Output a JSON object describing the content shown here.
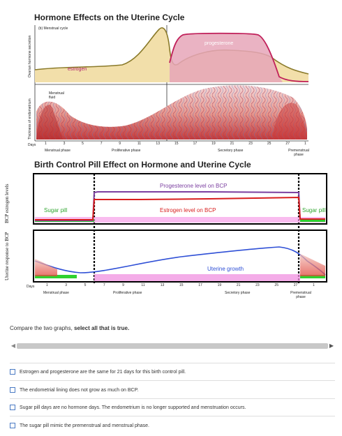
{
  "top_chart": {
    "title": "Hormone Effects on the Uterine Cycle",
    "panel_label": "(b) Menstrual cycle",
    "axis_ovarian": "Ovarian hormone secretion",
    "axis_endometrium": "Thickness of endometrium",
    "estrogen": "estrogen",
    "progesterone": "progesterone",
    "menstrual_fluid": "Menstrual fluid",
    "days": "Days",
    "day_ticks": [
      "1",
      "3",
      "5",
      "7",
      "9",
      "11",
      "13",
      "15",
      "17",
      "19",
      "21",
      "23",
      "25",
      "27",
      "1"
    ],
    "phases": [
      "Menstrual phase",
      "Proliferative phase",
      "Secretory phase",
      "Premenstrual phase"
    ],
    "colors": {
      "estrogen_fill": "#f2dfaa",
      "estrogen_line": "#8a7a2a",
      "progesterone_fill": "#e09ab0",
      "progesterone_line": "#c0205a"
    }
  },
  "bottom_chart": {
    "title": "Birth Control Pill Effect on Hormone and Uterine Cycle",
    "axis_levels": "BCP estrogen levels",
    "axis_response": "Uterine response to BCP",
    "sugar_pill": "Sugar pill",
    "sugar_pill_right": "Sugar pill",
    "progesterone_level": "Progesterone level on BCP",
    "estrogen_level": "Estrogen level on BCP",
    "uterine_growth": "Uterine growth",
    "days": "Days",
    "day_ticks": [
      "1",
      "3",
      "5",
      "7",
      "9",
      "11",
      "13",
      "15",
      "17",
      "19",
      "21",
      "23",
      "25",
      "27",
      "1"
    ],
    "phases": [
      "Menstrual phase",
      "Proliferative phase",
      "Secretory phase",
      "Premenstrual phase"
    ],
    "colors": {
      "progesterone": "#7b3fa0",
      "estrogen": "#d81e1e",
      "growth": "#2e4fd6",
      "sugar": "#2fd12f",
      "baseline": "#f080e0"
    }
  },
  "question": {
    "prefix": "Compare the two graphs,",
    "bold": "select all that is true."
  },
  "options": [
    "Estrogen and progesterone are the same for 21 days for this birth control pill.",
    "The endometrial lining does not grow as much on BCP.",
    "Sugar pill days are no hormone days. The endometrium is no longer supported and menstruation occurs.",
    "The sugar pill mimic the premenstrual and menstrual phase."
  ]
}
